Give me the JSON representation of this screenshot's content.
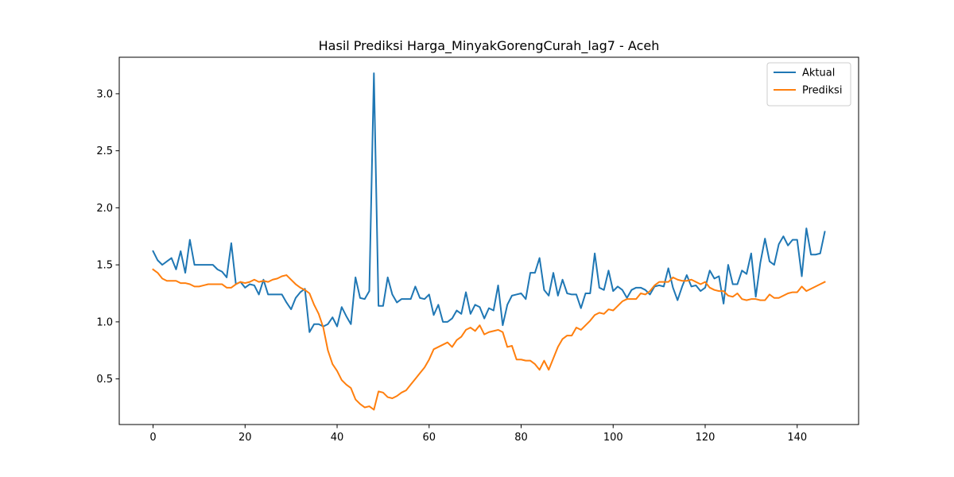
{
  "chart_data": {
    "type": "line",
    "title": "Hasil Prediksi Harga_MinyakGorengCurah_lag7 - Aceh",
    "xlabel": "",
    "ylabel": "",
    "xlim": [
      -7.35,
      153.35
    ],
    "ylim": [
      0.1,
      3.32
    ],
    "xticks": [
      0,
      20,
      40,
      60,
      80,
      100,
      120,
      140
    ],
    "yticks": [
      0.5,
      1.0,
      1.5,
      2.0,
      2.5,
      3.0
    ],
    "grid": false,
    "legend_position": "top-right",
    "series": [
      {
        "name": "Aktual",
        "color": "#1f77b4",
        "values": [
          1.62,
          1.54,
          1.5,
          1.53,
          1.56,
          1.46,
          1.62,
          1.43,
          1.72,
          1.5,
          1.5,
          1.5,
          1.5,
          1.5,
          1.46,
          1.44,
          1.39,
          1.69,
          1.33,
          1.35,
          1.3,
          1.33,
          1.32,
          1.24,
          1.37,
          1.24,
          1.24,
          1.24,
          1.24,
          1.17,
          1.11,
          1.21,
          1.26,
          1.29,
          0.91,
          0.98,
          0.98,
          0.96,
          0.98,
          1.04,
          0.96,
          1.13,
          1.05,
          0.98,
          1.39,
          1.21,
          1.2,
          1.27,
          3.18,
          1.14,
          1.14,
          1.39,
          1.24,
          1.17,
          1.2,
          1.2,
          1.2,
          1.31,
          1.21,
          1.2,
          1.24,
          1.06,
          1.15,
          1.0,
          1.0,
          1.03,
          1.1,
          1.07,
          1.26,
          1.07,
          1.15,
          1.13,
          1.03,
          1.12,
          1.1,
          1.32,
          0.97,
          1.15,
          1.23,
          1.24,
          1.25,
          1.2,
          1.43,
          1.43,
          1.56,
          1.28,
          1.23,
          1.43,
          1.23,
          1.37,
          1.25,
          1.24,
          1.24,
          1.12,
          1.25,
          1.25,
          1.6,
          1.3,
          1.28,
          1.45,
          1.27,
          1.31,
          1.28,
          1.21,
          1.28,
          1.3,
          1.3,
          1.28,
          1.24,
          1.31,
          1.32,
          1.31,
          1.47,
          1.3,
          1.19,
          1.31,
          1.41,
          1.31,
          1.32,
          1.27,
          1.3,
          1.45,
          1.38,
          1.4,
          1.16,
          1.5,
          1.33,
          1.33,
          1.45,
          1.42,
          1.6,
          1.22,
          1.52,
          1.73,
          1.53,
          1.5,
          1.68,
          1.75,
          1.67,
          1.72,
          1.72,
          1.4,
          1.82,
          1.59,
          1.59,
          1.6,
          1.79
        ]
      },
      {
        "name": "Prediksi",
        "color": "#ff7f0e",
        "values": [
          1.46,
          1.43,
          1.38,
          1.36,
          1.36,
          1.36,
          1.34,
          1.34,
          1.33,
          1.31,
          1.31,
          1.32,
          1.33,
          1.33,
          1.33,
          1.33,
          1.3,
          1.3,
          1.33,
          1.35,
          1.34,
          1.35,
          1.37,
          1.35,
          1.36,
          1.35,
          1.37,
          1.38,
          1.4,
          1.41,
          1.37,
          1.33,
          1.3,
          1.28,
          1.25,
          1.15,
          1.07,
          0.95,
          0.75,
          0.63,
          0.57,
          0.49,
          0.45,
          0.42,
          0.32,
          0.28,
          0.25,
          0.26,
          0.23,
          0.39,
          0.38,
          0.34,
          0.33,
          0.35,
          0.38,
          0.4,
          0.45,
          0.5,
          0.55,
          0.6,
          0.67,
          0.76,
          0.78,
          0.8,
          0.82,
          0.78,
          0.84,
          0.87,
          0.93,
          0.95,
          0.92,
          0.97,
          0.89,
          0.91,
          0.92,
          0.93,
          0.91,
          0.78,
          0.79,
          0.67,
          0.67,
          0.66,
          0.66,
          0.63,
          0.58,
          0.66,
          0.58,
          0.68,
          0.78,
          0.85,
          0.88,
          0.88,
          0.95,
          0.93,
          0.97,
          1.01,
          1.06,
          1.08,
          1.07,
          1.11,
          1.1,
          1.14,
          1.18,
          1.2,
          1.2,
          1.2,
          1.25,
          1.24,
          1.27,
          1.32,
          1.35,
          1.35,
          1.35,
          1.39,
          1.37,
          1.36,
          1.36,
          1.37,
          1.35,
          1.33,
          1.35,
          1.3,
          1.28,
          1.27,
          1.27,
          1.23,
          1.22,
          1.25,
          1.2,
          1.19,
          1.2,
          1.2,
          1.19,
          1.19,
          1.24,
          1.21,
          1.21,
          1.23,
          1.25,
          1.26,
          1.26,
          1.31,
          1.27,
          1.29,
          1.31,
          1.33,
          1.35
        ]
      }
    ]
  }
}
